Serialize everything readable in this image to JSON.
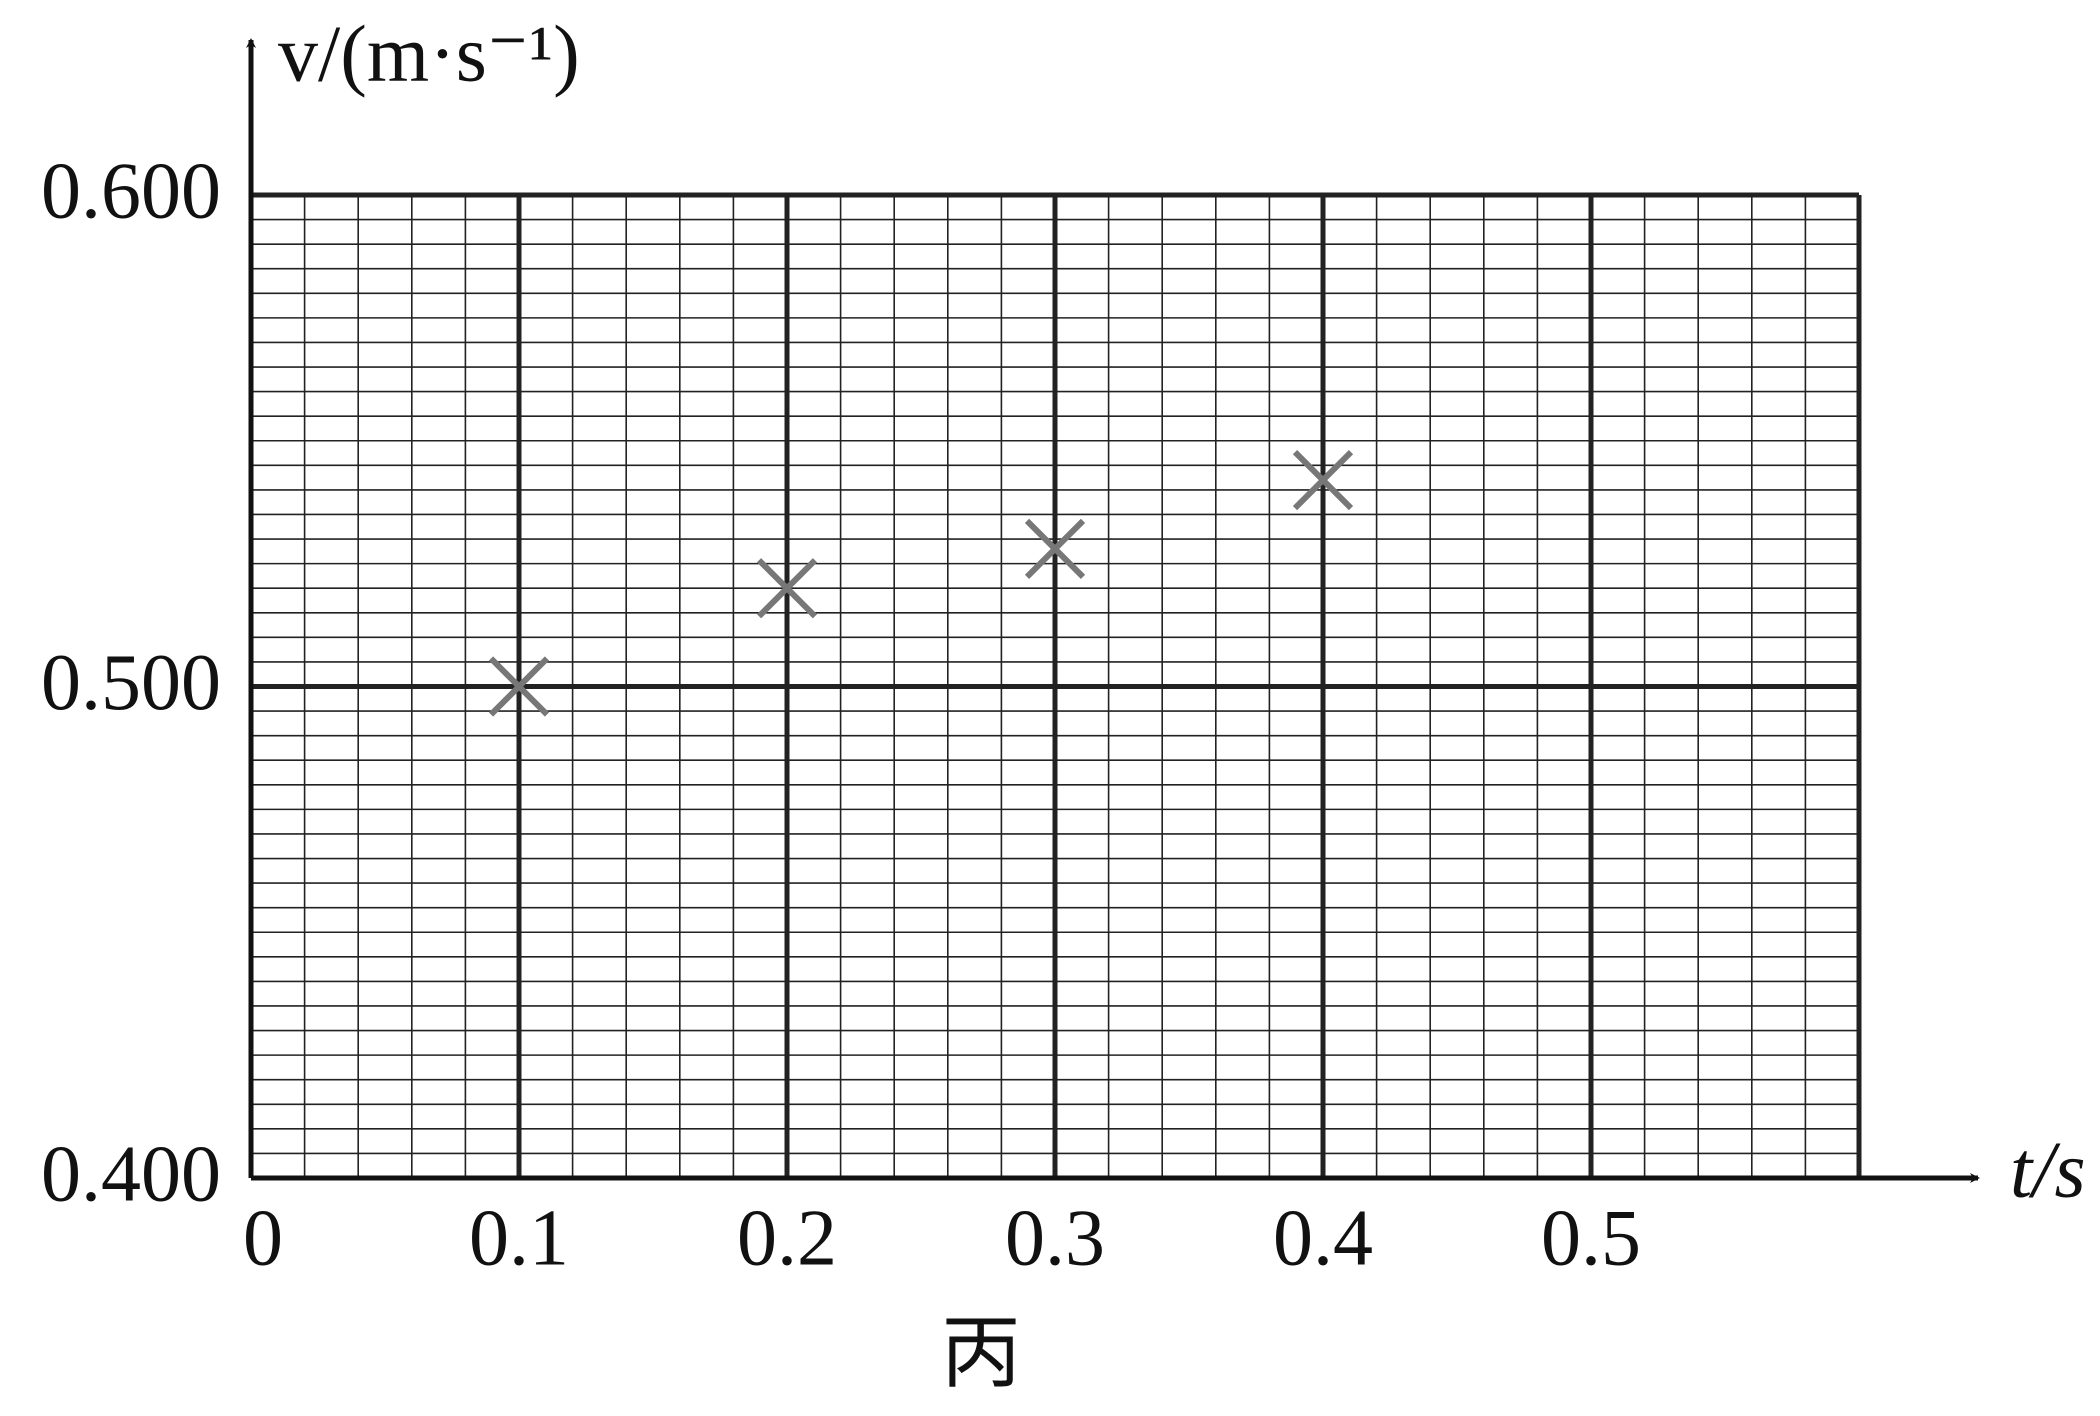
{
  "chart_data": {
    "type": "scatter",
    "caption": "丙",
    "xlabel": "t/s",
    "ylabel": "v/(m·s⁻¹)",
    "series": [
      {
        "name": "v",
        "color": "#777777",
        "x": [
          0.1,
          0.2,
          0.3,
          0.4
        ],
        "values": [
          0.5,
          0.52,
          0.528,
          0.542
        ]
      }
    ],
    "xlim": [
      0,
      0.6
    ],
    "ylim": [
      0.4,
      0.6
    ],
    "xticks": [
      0,
      0.1,
      0.2,
      0.3,
      0.4,
      0.5
    ],
    "yticks": [
      {
        "value": 0.4,
        "label": "0.400"
      },
      {
        "value": 0.5,
        "label": "0.500"
      },
      {
        "value": 0.6,
        "label": "0.600"
      }
    ],
    "grid": true
  }
}
